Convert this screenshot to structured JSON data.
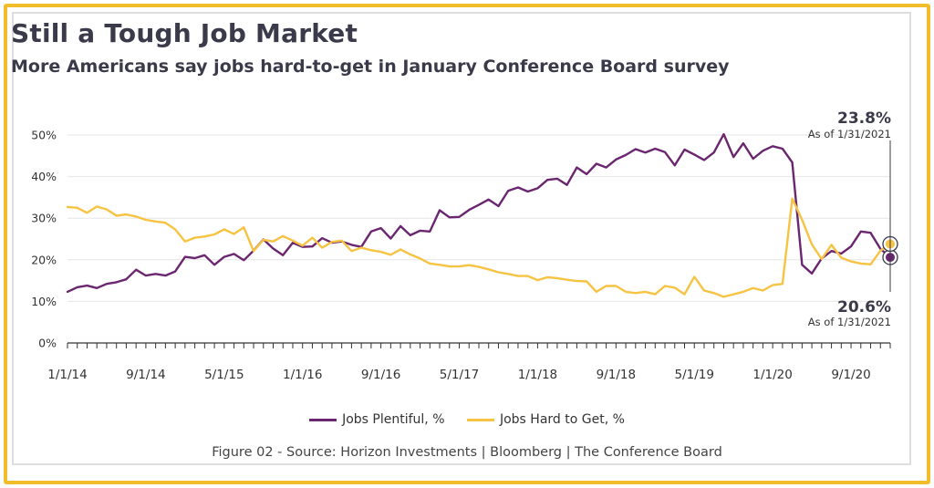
{
  "header": {
    "title": "Still a Tough Job Market",
    "subtitle": "More Americans say jobs hard-to-get in January Conference Board survey"
  },
  "source": "Figure 02 - Source: Horizon Investments | Bloomberg | The Conference Board",
  "callouts": {
    "hard_value": "23.8%",
    "hard_date": "As of 1/31/2021",
    "plentiful_value": "20.6%",
    "plentiful_date": "As of 1/31/2021"
  },
  "chart_data": {
    "type": "line",
    "title": "Still a Tough Job Market",
    "subtitle": "More Americans say jobs hard-to-get in January Conference Board survey",
    "xlabel": "",
    "ylabel": "",
    "ylim": [
      0,
      50
    ],
    "yticks": [
      "0%",
      "10%",
      "20%",
      "30%",
      "40%",
      "50%"
    ],
    "xtick_labels": [
      "1/1/14",
      "9/1/14",
      "5/1/15",
      "1/1/16",
      "9/1/16",
      "5/1/17",
      "1/1/18",
      "9/1/18",
      "5/1/19",
      "1/1/20",
      "9/1/20"
    ],
    "grid": "horizontal",
    "legend_position": "bottom",
    "colors": {
      "Jobs Plentiful, %": "#6b2670",
      "Jobs Hard to Get, %": "#f6c342"
    },
    "x_start": "2014-01",
    "x_end": "2021-01",
    "series": [
      {
        "name": "Jobs Plentiful, %",
        "values": [
          12.3,
          13.4,
          13.8,
          13.2,
          14.2,
          14.6,
          15.3,
          17.6,
          16.2,
          16.6,
          16.2,
          17.2,
          20.7,
          20.4,
          21.1,
          18.8,
          20.7,
          21.4,
          19.9,
          22.2,
          24.9,
          22.7,
          21.1,
          24.1,
          23.1,
          23.2,
          25.2,
          24.1,
          24.4,
          23.6,
          23.1,
          26.8,
          27.6,
          25.1,
          28.1,
          25.9,
          27.0,
          26.8,
          31.9,
          30.2,
          30.3,
          32.0,
          33.2,
          34.5,
          32.9,
          36.6,
          37.4,
          36.4,
          37.2,
          39.2,
          39.5,
          38.0,
          42.2,
          40.6,
          43.1,
          42.2,
          44.1,
          45.2,
          46.6,
          45.8,
          46.7,
          45.9,
          42.7,
          46.5,
          45.3,
          44.0,
          45.8,
          50.2,
          44.7,
          48.0,
          44.3,
          46.2,
          47.3,
          46.7,
          43.4,
          18.8,
          16.7,
          20.3,
          22.1,
          21.5,
          23.2,
          26.8,
          26.5,
          22.6,
          20.6
        ]
      },
      {
        "name": "Jobs Hard to Get, %",
        "values": [
          32.7,
          32.5,
          31.3,
          32.8,
          32.1,
          30.6,
          30.9,
          30.4,
          29.6,
          29.2,
          28.9,
          27.3,
          24.4,
          25.3,
          25.6,
          26.1,
          27.3,
          26.2,
          27.8,
          22.1,
          24.8,
          24.4,
          25.7,
          24.6,
          23.4,
          25.3,
          22.9,
          24.3,
          24.6,
          22.1,
          22.9,
          22.3,
          21.9,
          21.2,
          22.5,
          21.3,
          20.3,
          19.1,
          18.8,
          18.4,
          18.4,
          18.7,
          18.3,
          17.7,
          17.0,
          16.6,
          16.1,
          16.1,
          15.1,
          15.8,
          15.6,
          15.2,
          14.9,
          14.8,
          12.3,
          13.7,
          13.7,
          12.3,
          12.0,
          12.3,
          11.7,
          13.7,
          13.3,
          11.7,
          15.9,
          12.6,
          12.0,
          11.1,
          11.7,
          12.3,
          13.2,
          12.6,
          13.9,
          14.2,
          34.7,
          29.6,
          23.7,
          20.2,
          23.6,
          20.5,
          19.6,
          19.1,
          18.9,
          22.2,
          23.8
        ]
      }
    ]
  }
}
